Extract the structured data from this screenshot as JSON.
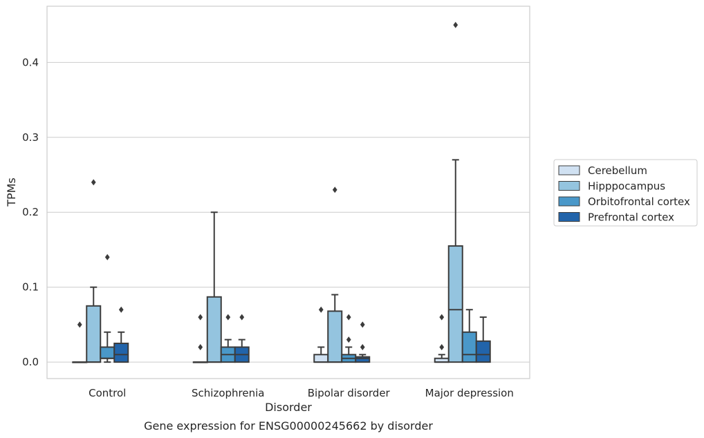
{
  "chart_data": {
    "type": "box",
    "title": "",
    "caption": "Gene expression for ENSG00000245662 by disorder",
    "xlabel": "Disorder",
    "ylabel": "TPMs",
    "ylim": [
      -0.022,
      0.475
    ],
    "yticks": [
      0.0,
      0.1,
      0.2,
      0.3,
      0.4
    ],
    "ytick_labels": [
      "0.0",
      "0.1",
      "0.2",
      "0.3",
      "0.4"
    ],
    "categories": [
      "Control",
      "Schizophrenia",
      "Bipolar disorder",
      "Major depression"
    ],
    "grid": "horizontal",
    "legend_position": "right",
    "series": [
      {
        "name": "Cerebellum",
        "color": "#d0e1f2",
        "boxes": [
          {
            "whislo": 0,
            "q1": 0,
            "med": 0,
            "q3": 0,
            "whishi": 0,
            "fliers": []
          },
          {
            "whislo": 0,
            "q1": 0,
            "med": 0,
            "q3": 0,
            "whishi": 0,
            "fliers": []
          },
          {
            "whislo": 0,
            "q1": 0,
            "med": 0,
            "q3": 0.01,
            "whishi": 0.02,
            "fliers": []
          },
          {
            "whislo": 0,
            "q1": 0,
            "med": 0,
            "q3": 0.005,
            "whishi": 0.01,
            "fliers": []
          }
        ]
      },
      {
        "name": "Hipppocampus",
        "color": "#94c4df",
        "boxes": [
          {
            "whislo": 0,
            "q1": 0,
            "med": 0,
            "q3": 0.075,
            "whishi": 0.1,
            "fliers": [
              0.24
            ]
          },
          {
            "whislo": 0,
            "q1": 0,
            "med": 0,
            "q3": 0.087,
            "whishi": 0.2,
            "fliers": []
          },
          {
            "whislo": 0,
            "q1": 0,
            "med": 0,
            "q3": 0.068,
            "whishi": 0.09,
            "fliers": [
              0.23
            ]
          },
          {
            "whislo": 0,
            "q1": 0,
            "med": 0.07,
            "q3": 0.155,
            "whishi": 0.27,
            "fliers": [
              0.45
            ]
          }
        ]
      },
      {
        "name": "Orbitofrontal cortex",
        "color": "#4a98c9",
        "boxes": [
          {
            "whislo": 0,
            "q1": 0.005,
            "med": 0.005,
            "q3": 0.02,
            "whishi": 0.04,
            "fliers": [
              0.14
            ]
          },
          {
            "whislo": 0,
            "q1": 0,
            "med": 0.01,
            "q3": 0.02,
            "whishi": 0.03,
            "fliers": [
              0.06
            ]
          },
          {
            "whislo": 0,
            "q1": 0,
            "med": 0.005,
            "q3": 0.01,
            "whishi": 0.02,
            "fliers": [
              0.03,
              0.06
            ]
          },
          {
            "whislo": 0,
            "q1": 0,
            "med": 0.01,
            "q3": 0.04,
            "whishi": 0.07,
            "fliers": []
          }
        ]
      },
      {
        "name": "Prefrontal cortex",
        "color": "#2264aa",
        "boxes": [
          {
            "whislo": 0,
            "q1": 0,
            "med": 0.01,
            "q3": 0.025,
            "whishi": 0.04,
            "fliers": [
              0.07
            ]
          },
          {
            "whislo": 0,
            "q1": 0,
            "med": 0.01,
            "q3": 0.02,
            "whishi": 0.03,
            "fliers": [
              0.06
            ]
          },
          {
            "whislo": 0,
            "q1": 0,
            "med": 0.005,
            "q3": 0.007,
            "whishi": 0.01,
            "fliers": [
              0.02,
              0.05
            ]
          },
          {
            "whislo": 0,
            "q1": 0,
            "med": 0.01,
            "q3": 0.028,
            "whishi": 0.06,
            "fliers": []
          }
        ]
      }
    ],
    "extra_fliers": [
      {
        "category": 0,
        "series": 0,
        "values": [
          0.05
        ]
      },
      {
        "category": 1,
        "series": 0,
        "values": [
          0.02,
          0.06
        ]
      },
      {
        "category": 2,
        "series": 0,
        "values": [
          0.07
        ]
      },
      {
        "category": 3,
        "series": 0,
        "values": [
          0.02,
          0.06
        ]
      }
    ]
  }
}
